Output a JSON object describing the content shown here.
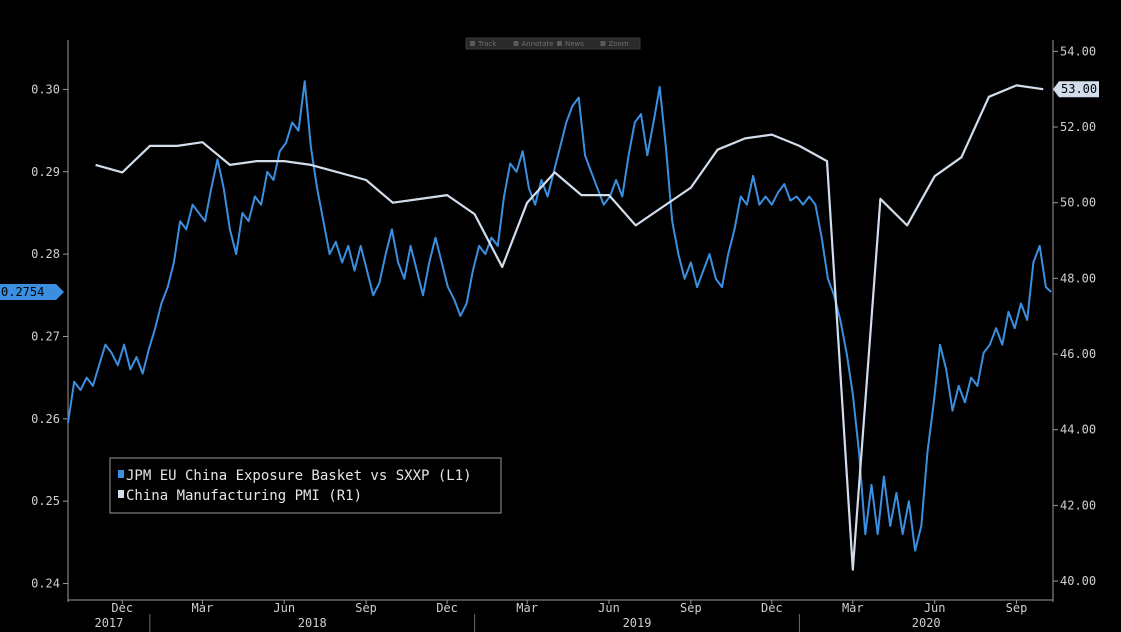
{
  "toolbar": {
    "items": [
      {
        "icon": "crosshair-icon",
        "label": "Track"
      },
      {
        "icon": "pencil-icon",
        "label": "Annotate"
      },
      {
        "icon": "news-icon",
        "label": "News"
      },
      {
        "icon": "magnifier-icon",
        "label": "Zoom"
      }
    ]
  },
  "chart_data": {
    "type": "line",
    "title": "",
    "legend_position": "bottom-left",
    "grid": false,
    "left_axis": {
      "ylim": [
        0.238,
        0.306
      ],
      "ticks": [
        "0.24",
        "0.25",
        "0.26",
        "0.27",
        "0.28",
        "0.29",
        "0.30"
      ]
    },
    "right_axis": {
      "ylim": [
        39.5,
        54.3
      ],
      "ticks": [
        "40.00",
        "42.00",
        "44.00",
        "46.00",
        "48.00",
        "50.00",
        "52.00",
        "54.00"
      ]
    },
    "x_axis": {
      "range": [
        "2017-10-01",
        "2020-10-12"
      ],
      "months": [
        {
          "label": "Dec",
          "date": "2017-12-01"
        },
        {
          "label": "Mar",
          "date": "2018-03-01"
        },
        {
          "label": "Jun",
          "date": "2018-06-01"
        },
        {
          "label": "Sep",
          "date": "2018-09-01"
        },
        {
          "label": "Dec",
          "date": "2018-12-01"
        },
        {
          "label": "Mar",
          "date": "2019-03-01"
        },
        {
          "label": "Jun",
          "date": "2019-06-01"
        },
        {
          "label": "Sep",
          "date": "2019-09-01"
        },
        {
          "label": "Dec",
          "date": "2019-12-01"
        },
        {
          "label": "Mar",
          "date": "2020-03-01"
        },
        {
          "label": "Jun",
          "date": "2020-06-01"
        },
        {
          "label": "Sep",
          "date": "2020-09-01"
        }
      ],
      "years": [
        {
          "label": "2017",
          "start": "2017-10-01",
          "end": "2018-01-01"
        },
        {
          "label": "2018",
          "start": "2018-01-01",
          "end": "2019-01-01"
        },
        {
          "label": "2019",
          "start": "2019-01-01",
          "end": "2020-01-01"
        },
        {
          "label": "2020",
          "start": "2020-01-01",
          "end": "2020-10-12"
        }
      ]
    },
    "series": [
      {
        "name": "JPM EU China Exposure Basket vs SXXP (L1)",
        "axis": "left",
        "color": "#3a8fe0",
        "last_value": "0.2754",
        "points": [
          [
            "2017-10-01",
            0.2595
          ],
          [
            "2017-10-08",
            0.2645
          ],
          [
            "2017-10-15",
            0.2635
          ],
          [
            "2017-10-22",
            0.265
          ],
          [
            "2017-10-29",
            0.264
          ],
          [
            "2017-11-05",
            0.2665
          ],
          [
            "2017-11-12",
            0.269
          ],
          [
            "2017-11-19",
            0.268
          ],
          [
            "2017-11-26",
            0.2665
          ],
          [
            "2017-12-03",
            0.269
          ],
          [
            "2017-12-10",
            0.266
          ],
          [
            "2017-12-17",
            0.2675
          ],
          [
            "2017-12-24",
            0.2655
          ],
          [
            "2017-12-31",
            0.2685
          ],
          [
            "2018-01-07",
            0.271
          ],
          [
            "2018-01-14",
            0.274
          ],
          [
            "2018-01-21",
            0.276
          ],
          [
            "2018-01-28",
            0.279
          ],
          [
            "2018-02-04",
            0.284
          ],
          [
            "2018-02-11",
            0.283
          ],
          [
            "2018-02-18",
            0.286
          ],
          [
            "2018-02-25",
            0.285
          ],
          [
            "2018-03-04",
            0.284
          ],
          [
            "2018-03-11",
            0.288
          ],
          [
            "2018-03-18",
            0.2915
          ],
          [
            "2018-03-25",
            0.288
          ],
          [
            "2018-04-01",
            0.283
          ],
          [
            "2018-04-08",
            0.28
          ],
          [
            "2018-04-15",
            0.285
          ],
          [
            "2018-04-22",
            0.284
          ],
          [
            "2018-04-29",
            0.287
          ],
          [
            "2018-05-06",
            0.286
          ],
          [
            "2018-05-13",
            0.29
          ],
          [
            "2018-05-20",
            0.289
          ],
          [
            "2018-05-27",
            0.2925
          ],
          [
            "2018-06-03",
            0.2935
          ],
          [
            "2018-06-10",
            0.296
          ],
          [
            "2018-06-17",
            0.295
          ],
          [
            "2018-06-24",
            0.301
          ],
          [
            "2018-07-01",
            0.293
          ],
          [
            "2018-07-08",
            0.288
          ],
          [
            "2018-07-15",
            0.284
          ],
          [
            "2018-07-22",
            0.28
          ],
          [
            "2018-07-29",
            0.2815
          ],
          [
            "2018-08-05",
            0.279
          ],
          [
            "2018-08-12",
            0.281
          ],
          [
            "2018-08-19",
            0.278
          ],
          [
            "2018-08-26",
            0.281
          ],
          [
            "2018-09-02",
            0.278
          ],
          [
            "2018-09-09",
            0.275
          ],
          [
            "2018-09-16",
            0.2765
          ],
          [
            "2018-09-23",
            0.28
          ],
          [
            "2018-09-30",
            0.283
          ],
          [
            "2018-10-07",
            0.279
          ],
          [
            "2018-10-14",
            0.277
          ],
          [
            "2018-10-21",
            0.281
          ],
          [
            "2018-10-28",
            0.278
          ],
          [
            "2018-11-04",
            0.275
          ],
          [
            "2018-11-11",
            0.279
          ],
          [
            "2018-11-18",
            0.282
          ],
          [
            "2018-11-25",
            0.279
          ],
          [
            "2018-12-02",
            0.276
          ],
          [
            "2018-12-09",
            0.2745
          ],
          [
            "2018-12-16",
            0.2725
          ],
          [
            "2018-12-23",
            0.274
          ],
          [
            "2018-12-30",
            0.278
          ],
          [
            "2019-01-06",
            0.281
          ],
          [
            "2019-01-13",
            0.28
          ],
          [
            "2019-01-20",
            0.282
          ],
          [
            "2019-01-27",
            0.281
          ],
          [
            "2019-02-03",
            0.287
          ],
          [
            "2019-02-10",
            0.291
          ],
          [
            "2019-02-17",
            0.29
          ],
          [
            "2019-02-24",
            0.2925
          ],
          [
            "2019-03-03",
            0.288
          ],
          [
            "2019-03-10",
            0.286
          ],
          [
            "2019-03-17",
            0.289
          ],
          [
            "2019-03-24",
            0.287
          ],
          [
            "2019-03-31",
            0.29
          ],
          [
            "2019-04-07",
            0.293
          ],
          [
            "2019-04-14",
            0.296
          ],
          [
            "2019-04-21",
            0.298
          ],
          [
            "2019-04-28",
            0.299
          ],
          [
            "2019-05-05",
            0.292
          ],
          [
            "2019-05-12",
            0.29
          ],
          [
            "2019-05-19",
            0.288
          ],
          [
            "2019-05-26",
            0.286
          ],
          [
            "2019-06-02",
            0.287
          ],
          [
            "2019-06-09",
            0.289
          ],
          [
            "2019-06-16",
            0.287
          ],
          [
            "2019-06-23",
            0.292
          ],
          [
            "2019-06-30",
            0.296
          ],
          [
            "2019-07-07",
            0.297
          ],
          [
            "2019-07-14",
            0.292
          ],
          [
            "2019-07-21",
            0.296
          ],
          [
            "2019-07-28",
            0.3003
          ],
          [
            "2019-08-04",
            0.293
          ],
          [
            "2019-08-11",
            0.284
          ],
          [
            "2019-08-18",
            0.28
          ],
          [
            "2019-08-25",
            0.277
          ],
          [
            "2019-09-01",
            0.279
          ],
          [
            "2019-09-08",
            0.276
          ],
          [
            "2019-09-15",
            0.278
          ],
          [
            "2019-09-22",
            0.28
          ],
          [
            "2019-09-29",
            0.277
          ],
          [
            "2019-10-06",
            0.276
          ],
          [
            "2019-10-13",
            0.28
          ],
          [
            "2019-10-20",
            0.283
          ],
          [
            "2019-10-27",
            0.287
          ],
          [
            "2019-11-03",
            0.286
          ],
          [
            "2019-11-10",
            0.2895
          ],
          [
            "2019-11-17",
            0.286
          ],
          [
            "2019-11-24",
            0.287
          ],
          [
            "2019-12-01",
            0.286
          ],
          [
            "2019-12-08",
            0.2875
          ],
          [
            "2019-12-15",
            0.2885
          ],
          [
            "2019-12-22",
            0.2865
          ],
          [
            "2019-12-29",
            0.287
          ],
          [
            "2020-01-05",
            0.286
          ],
          [
            "2020-01-12",
            0.287
          ],
          [
            "2020-01-19",
            0.286
          ],
          [
            "2020-01-26",
            0.282
          ],
          [
            "2020-02-02",
            0.277
          ],
          [
            "2020-02-09",
            0.275
          ],
          [
            "2020-02-16",
            0.272
          ],
          [
            "2020-02-23",
            0.268
          ],
          [
            "2020-03-01",
            0.263
          ],
          [
            "2020-03-08",
            0.256
          ],
          [
            "2020-03-15",
            0.246
          ],
          [
            "2020-03-22",
            0.252
          ],
          [
            "2020-03-29",
            0.246
          ],
          [
            "2020-04-05",
            0.253
          ],
          [
            "2020-04-12",
            0.247
          ],
          [
            "2020-04-19",
            0.251
          ],
          [
            "2020-04-26",
            0.246
          ],
          [
            "2020-05-03",
            0.25
          ],
          [
            "2020-05-10",
            0.244
          ],
          [
            "2020-05-17",
            0.247
          ],
          [
            "2020-05-24",
            0.256
          ],
          [
            "2020-05-31",
            0.262
          ],
          [
            "2020-06-07",
            0.269
          ],
          [
            "2020-06-14",
            0.266
          ],
          [
            "2020-06-21",
            0.261
          ],
          [
            "2020-06-28",
            0.264
          ],
          [
            "2020-07-05",
            0.262
          ],
          [
            "2020-07-12",
            0.265
          ],
          [
            "2020-07-19",
            0.264
          ],
          [
            "2020-07-26",
            0.268
          ],
          [
            "2020-08-02",
            0.269
          ],
          [
            "2020-08-09",
            0.271
          ],
          [
            "2020-08-16",
            0.269
          ],
          [
            "2020-08-23",
            0.273
          ],
          [
            "2020-08-30",
            0.271
          ],
          [
            "2020-09-06",
            0.274
          ],
          [
            "2020-09-13",
            0.272
          ],
          [
            "2020-09-20",
            0.279
          ],
          [
            "2020-09-27",
            0.281
          ],
          [
            "2020-10-04",
            0.276
          ],
          [
            "2020-10-10",
            0.2754
          ]
        ]
      },
      {
        "name": "China Manufacturing PMI (R1)",
        "axis": "right",
        "color": "#d2ddec",
        "last_value": "53.00",
        "points": [
          [
            "2017-11-01",
            51.0
          ],
          [
            "2017-12-01",
            50.8
          ],
          [
            "2018-01-01",
            51.5
          ],
          [
            "2018-02-01",
            51.5
          ],
          [
            "2018-03-01",
            51.6
          ],
          [
            "2018-04-01",
            51.0
          ],
          [
            "2018-05-01",
            51.1
          ],
          [
            "2018-06-01",
            51.1
          ],
          [
            "2018-07-01",
            51.0
          ],
          [
            "2018-08-01",
            50.8
          ],
          [
            "2018-09-01",
            50.6
          ],
          [
            "2018-10-01",
            50.0
          ],
          [
            "2018-11-01",
            50.1
          ],
          [
            "2018-12-01",
            50.2
          ],
          [
            "2019-01-01",
            49.7
          ],
          [
            "2019-02-01",
            48.3
          ],
          [
            "2019-03-01",
            50.0
          ],
          [
            "2019-04-01",
            50.8
          ],
          [
            "2019-05-01",
            50.2
          ],
          [
            "2019-06-01",
            50.2
          ],
          [
            "2019-07-01",
            49.4
          ],
          [
            "2019-08-01",
            49.9
          ],
          [
            "2019-09-01",
            50.4
          ],
          [
            "2019-10-01",
            51.4
          ],
          [
            "2019-11-01",
            51.7
          ],
          [
            "2019-12-01",
            51.8
          ],
          [
            "2020-01-01",
            51.5
          ],
          [
            "2020-02-01",
            51.1
          ],
          [
            "2020-03-01",
            40.3
          ],
          [
            "2020-04-01",
            50.1
          ],
          [
            "2020-05-01",
            49.4
          ],
          [
            "2020-06-01",
            50.7
          ],
          [
            "2020-07-01",
            51.2
          ],
          [
            "2020-08-01",
            52.8
          ],
          [
            "2020-09-01",
            53.1
          ],
          [
            "2020-10-01",
            53.0
          ]
        ]
      }
    ]
  }
}
